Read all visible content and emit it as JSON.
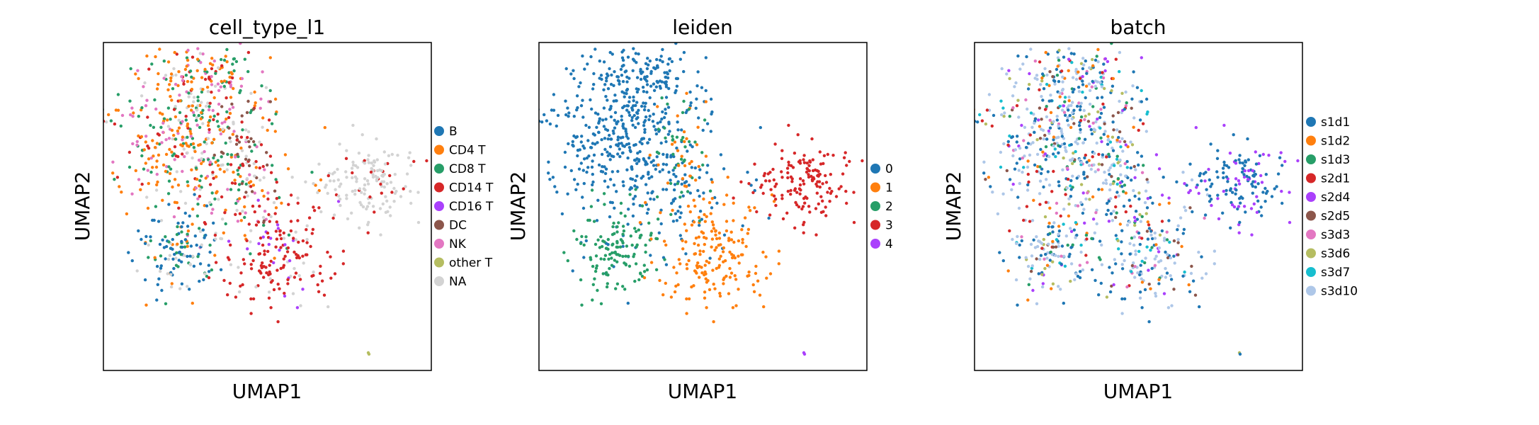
{
  "chart_data": [
    {
      "type": "scatter",
      "title": "cell_type_l1",
      "xlabel": "UMAP1",
      "ylabel": "UMAP2",
      "grid": false,
      "ticks": false,
      "legend_placement": "right",
      "legend": [
        {
          "label": "B",
          "color": "#1f77b4"
        },
        {
          "label": "CD4 T",
          "color": "#ff7f0e"
        },
        {
          "label": "CD8 T",
          "color": "#279e68"
        },
        {
          "label": "CD14 T",
          "color": "#d62728"
        },
        {
          "label": "CD16 T",
          "color": "#aa40fc"
        },
        {
          "label": "DC",
          "color": "#8c564b"
        },
        {
          "label": "NK",
          "color": "#e377c2"
        },
        {
          "label": "other T",
          "color": "#b5bd61"
        },
        {
          "label": "NA",
          "color": "#d3d3d3"
        }
      ]
    },
    {
      "type": "scatter",
      "title": "leiden",
      "xlabel": "UMAP1",
      "ylabel": "UMAP2",
      "grid": false,
      "ticks": false,
      "legend_placement": "right",
      "legend": [
        {
          "label": "0",
          "color": "#1f77b4"
        },
        {
          "label": "1",
          "color": "#ff7f0e"
        },
        {
          "label": "2",
          "color": "#279e68"
        },
        {
          "label": "3",
          "color": "#d62728"
        },
        {
          "label": "4",
          "color": "#aa40fc"
        }
      ]
    },
    {
      "type": "scatter",
      "title": "batch",
      "xlabel": "UMAP1",
      "ylabel": "UMAP2",
      "grid": false,
      "ticks": false,
      "legend_placement": "right",
      "legend": [
        {
          "label": "s1d1",
          "color": "#1f77b4"
        },
        {
          "label": "s1d2",
          "color": "#ff7f0e"
        },
        {
          "label": "s1d3",
          "color": "#279e68"
        },
        {
          "label": "s2d1",
          "color": "#d62728"
        },
        {
          "label": "s2d4",
          "color": "#aa40fc"
        },
        {
          "label": "s2d5",
          "color": "#8c564b"
        },
        {
          "label": "s3d3",
          "color": "#e377c2"
        },
        {
          "label": "s3d6",
          "color": "#b5bd61"
        },
        {
          "label": "s3d7",
          "color": "#17becf"
        },
        {
          "label": "s3d10",
          "color": "#aec7e8"
        }
      ]
    }
  ]
}
